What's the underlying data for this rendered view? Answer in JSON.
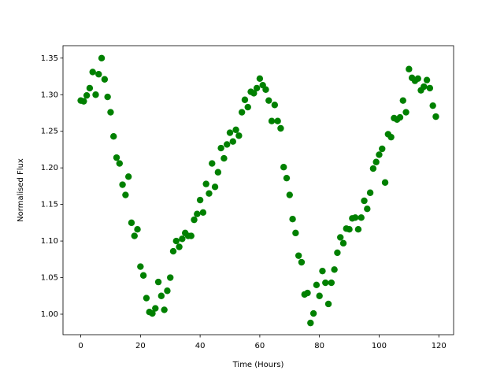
{
  "chart_data": {
    "type": "scatter",
    "x_label": "Time (Hours)",
    "y_label": "Normalised Flux",
    "color": "#008000",
    "x": [
      0,
      1,
      2,
      3,
      4,
      5,
      6,
      7,
      8,
      9,
      10,
      11,
      12,
      13,
      14,
      15,
      16,
      17,
      18,
      19,
      20,
      21,
      22,
      23,
      24,
      25,
      26,
      27,
      28,
      29,
      30,
      31,
      32,
      33,
      34,
      35,
      36,
      37,
      38,
      39,
      40,
      41,
      42,
      43,
      44,
      45,
      46,
      47,
      48,
      49,
      50,
      51,
      52,
      53,
      54,
      55,
      56,
      57,
      58,
      59,
      60,
      61,
      62,
      63,
      64,
      65,
      66,
      67,
      68,
      69,
      70,
      71,
      72,
      73,
      74,
      75,
      76,
      77,
      78,
      79,
      80,
      81,
      82,
      83,
      84,
      85,
      86,
      87,
      88,
      89,
      90,
      91,
      92,
      93,
      94,
      95,
      96,
      97,
      98,
      99,
      100,
      101,
      102,
      103,
      104,
      105,
      106,
      107,
      108,
      109,
      110,
      111,
      112,
      113,
      114,
      115,
      116,
      117,
      118,
      119
    ],
    "values": [
      1.292,
      1.291,
      1.299,
      1.309,
      1.331,
      1.3,
      1.328,
      1.35,
      1.321,
      1.297,
      1.276,
      1.243,
      1.214,
      1.206,
      1.177,
      1.163,
      1.188,
      1.125,
      1.107,
      1.116,
      1.065,
      1.053,
      1.022,
      1.003,
      1.001,
      1.008,
      1.044,
      1.025,
      1.006,
      1.032,
      1.05,
      1.086,
      1.1,
      1.092,
      1.103,
      1.111,
      1.107,
      1.107,
      1.129,
      1.137,
      1.156,
      1.139,
      1.178,
      1.165,
      1.206,
      1.174,
      1.194,
      1.227,
      1.213,
      1.232,
      1.248,
      1.236,
      1.252,
      1.244,
      1.276,
      1.293,
      1.283,
      1.304,
      1.302,
      1.309,
      1.322,
      1.313,
      1.307,
      1.292,
      1.264,
      1.286,
      1.264,
      1.254,
      1.201,
      1.186,
      1.163,
      1.13,
      1.111,
      1.08,
      1.071,
      1.027,
      1.029,
      0.988,
      1.001,
      1.04,
      1.025,
      1.059,
      1.043,
      1.014,
      1.043,
      1.061,
      1.084,
      1.105,
      1.097,
      1.117,
      1.116,
      1.131,
      1.132,
      1.116,
      1.132,
      1.155,
      1.144,
      1.166,
      1.199,
      1.208,
      1.218,
      1.226,
      1.18,
      1.246,
      1.242,
      1.268,
      1.266,
      1.269,
      1.292,
      1.276,
      1.335,
      1.323,
      1.319,
      1.322,
      1.306,
      1.311,
      1.32,
      1.309,
      1.285,
      1.27
    ],
    "xlim": [
      -5.95,
      124.95
    ],
    "ylim": [
      0.972,
      1.367
    ],
    "xticks": [
      0,
      20,
      40,
      60,
      80,
      100,
      120
    ],
    "yticks": [
      {
        "value": 1.0,
        "label": "1.00"
      },
      1.05,
      {
        "value": 1.1,
        "label": "1.10"
      },
      1.15,
      {
        "value": 1.2,
        "label": "1.20"
      },
      1.25,
      {
        "value": 1.3,
        "label": "1.30"
      },
      1.35
    ]
  }
}
